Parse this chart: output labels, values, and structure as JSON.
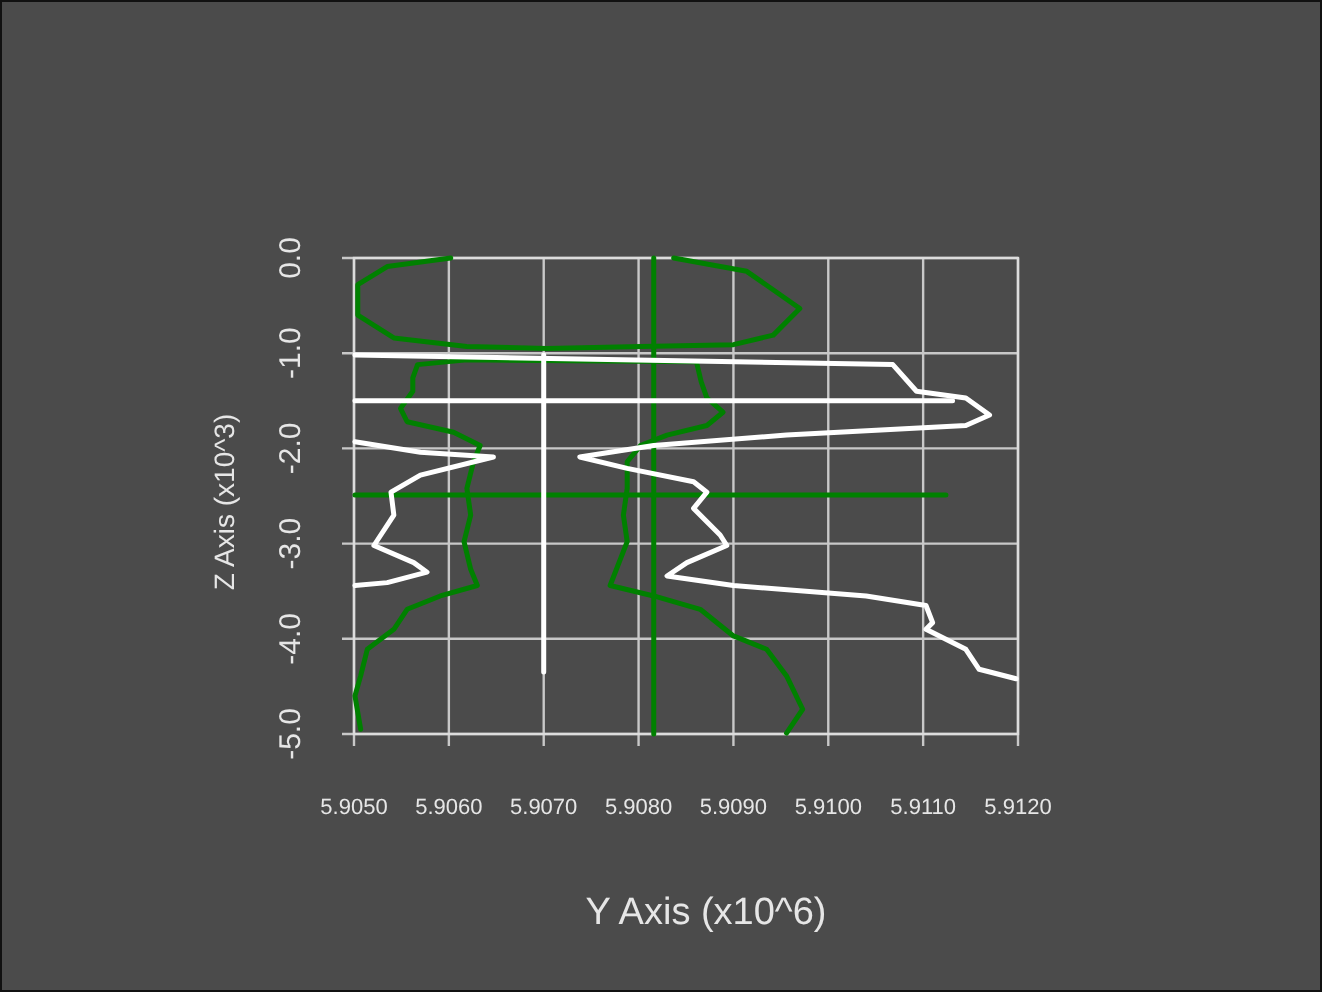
{
  "chart_data": {
    "type": "line",
    "xlabel": "Y Axis (x10^6)",
    "ylabel": "Z Axis (x10^3)",
    "grid": true,
    "xlim": [
      5.905,
      5.912
    ],
    "ylim": [
      -5.0,
      0.0
    ],
    "xticks": [
      {
        "value": 5.905,
        "label": "5.9050"
      },
      {
        "value": 5.906,
        "label": "5.9060"
      },
      {
        "value": 5.907,
        "label": "5.9070"
      },
      {
        "value": 5.908,
        "label": "5.9080"
      },
      {
        "value": 5.909,
        "label": "5.9090"
      },
      {
        "value": 5.91,
        "label": "5.9100"
      },
      {
        "value": 5.911,
        "label": "5.9110"
      },
      {
        "value": 5.912,
        "label": "5.9120"
      }
    ],
    "yticks": [
      {
        "value": -5,
        "label": "-5.0"
      },
      {
        "value": -4,
        "label": "-4.0"
      },
      {
        "value": -3,
        "label": "-3.0"
      },
      {
        "value": -2,
        "label": "-2.0"
      },
      {
        "value": -1,
        "label": "-1.0"
      },
      {
        "value": 0,
        "label": "0.0"
      }
    ],
    "series": [
      {
        "color": "#008000",
        "x": [
          5.90602,
          5.90535,
          5.90504,
          5.90504,
          5.90542,
          5.90619,
          5.90703,
          5.90802,
          5.909,
          5.90942,
          5.9097,
          5.90914,
          5.90837
        ],
        "values": [
          0,
          -0.09,
          -0.28,
          -0.6,
          -0.84,
          -0.93,
          -0.95,
          -0.93,
          -0.91,
          -0.81,
          -0.53,
          -0.14,
          0
        ]
      },
      {
        "color": "#008000",
        "x": [
          5.90816,
          5.90816
        ],
        "values": [
          0,
          -5.0
        ]
      },
      {
        "color": "#008000",
        "x": [
          5.90501,
          5.91124
        ],
        "values": [
          -2.49,
          -2.49
        ]
      },
      {
        "color": "#008000",
        "x": [
          5.90507,
          5.90501,
          5.90507,
          5.90514,
          5.90542,
          5.90556,
          5.90591,
          5.9063,
          5.90623,
          5.90616,
          5.90623,
          5.90619,
          5.90626,
          5.90633,
          5.90605,
          5.90556,
          5.90549,
          5.90562,
          5.90562,
          5.90567,
          5.90619,
          5.90861,
          5.90866,
          5.90872,
          5.90889,
          5.90872,
          5.9083,
          5.90802,
          5.90788,
          5.90788,
          5.90784,
          5.90788,
          5.9077,
          5.90816,
          5.90865,
          5.909,
          5.90935,
          5.90956,
          5.90973,
          5.90956
        ],
        "values": [
          -4.95,
          -4.6,
          -4.39,
          -4.11,
          -3.9,
          -3.69,
          -3.55,
          -3.44,
          -3.27,
          -2.98,
          -2.7,
          -2.42,
          -2.14,
          -1.97,
          -1.83,
          -1.72,
          -1.58,
          -1.4,
          -1.26,
          -1.12,
          -1.07,
          -1.09,
          -1.3,
          -1.47,
          -1.62,
          -1.76,
          -1.86,
          -1.97,
          -2.14,
          -2.42,
          -2.7,
          -2.98,
          -3.44,
          -3.55,
          -3.69,
          -3.97,
          -4.11,
          -4.39,
          -4.74,
          -4.99
        ]
      },
      {
        "color": "#ffffff",
        "x": [
          5.90501,
          5.91068,
          5.91093,
          5.91145,
          5.9117,
          5.91145,
          5.90956,
          5.90816,
          5.90738,
          5.90788,
          5.90858,
          5.90872,
          5.90858,
          5.90886,
          5.90893,
          5.90851,
          5.9083,
          5.909,
          5.9104,
          5.91103,
          5.9111,
          5.91103,
          5.91145,
          5.91159,
          5.91198
        ],
        "values": [
          -1.02,
          -1.12,
          -1.4,
          -1.47,
          -1.65,
          -1.76,
          -1.86,
          -1.97,
          -2.09,
          -2.21,
          -2.35,
          -2.46,
          -2.63,
          -2.91,
          -3.02,
          -3.2,
          -3.34,
          -3.44,
          -3.55,
          -3.65,
          -3.83,
          -3.9,
          -4.11,
          -4.32,
          -4.42
        ]
      },
      {
        "color": "#ffffff",
        "x": [
          5.90501,
          5.9057,
          5.90647,
          5.9057,
          5.90539,
          5.90542,
          5.90521,
          5.90563,
          5.90577,
          5.90535,
          5.90501
        ],
        "values": [
          -1.93,
          -2.04,
          -2.09,
          -2.28,
          -2.46,
          -2.7,
          -3.02,
          -3.2,
          -3.3,
          -3.41,
          -3.44
        ]
      },
      {
        "color": "#ffffff",
        "x": [
          5.90501,
          5.91131
        ],
        "values": [
          -1.5,
          -1.5
        ]
      },
      {
        "color": "#ffffff",
        "x": [
          5.907,
          5.907
        ],
        "values": [
          -1.02,
          -4.35
        ]
      }
    ]
  }
}
